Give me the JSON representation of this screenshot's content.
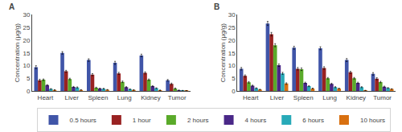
{
  "chart_data": [
    {
      "type": "bar",
      "title": "A",
      "categories": [
        "Heart",
        "Liver",
        "Spleen",
        "Lung",
        "Kidney",
        "Tumor"
      ],
      "ylabel": "Concentration (μg/g)",
      "ylim": [
        0,
        30
      ],
      "yticks": [
        0,
        5,
        10,
        15,
        20,
        25,
        30
      ],
      "grid": false,
      "legend": "bottom",
      "series": [
        {
          "name": "0.5 hours",
          "color": "#4055a8",
          "values": [
            9.4,
            15.0,
            12.2,
            11.1,
            14.0,
            4.3
          ],
          "errors": [
            0.6,
            0.5,
            0.5,
            0.6,
            0.5,
            0.3
          ]
        },
        {
          "name": "1 hour",
          "color": "#992222",
          "values": [
            4.3,
            7.8,
            6.5,
            7.0,
            7.2,
            2.9
          ],
          "errors": [
            0.4,
            0.4,
            0.4,
            0.4,
            0.4,
            0.3
          ]
        },
        {
          "name": "2 hours",
          "color": "#5aaa2a",
          "values": [
            4.5,
            4.8,
            1.4,
            3.7,
            4.5,
            1.1
          ],
          "errors": [
            0.3,
            0.3,
            0.2,
            0.3,
            0.3,
            0.2
          ]
        },
        {
          "name": "4 hours",
          "color": "#4a2888",
          "values": [
            2.4,
            1.7,
            1.1,
            1.6,
            2.0,
            0.4
          ],
          "errors": [
            0.2,
            0.2,
            0.15,
            0.2,
            0.2,
            0.1
          ]
        },
        {
          "name": "6 hours",
          "color": "#28aab8",
          "values": [
            0.9,
            1.5,
            1.0,
            0.8,
            1.2,
            0.25
          ],
          "errors": [
            0.15,
            0.2,
            0.15,
            0.1,
            0.15,
            0.1
          ]
        },
        {
          "name": "10 hours",
          "color": "#d87010",
          "values": [
            0.5,
            0.55,
            0.6,
            0.5,
            0.4,
            0.2
          ],
          "errors": [
            0.1,
            0.1,
            0.1,
            0.1,
            0.1,
            0.05
          ]
        }
      ]
    },
    {
      "type": "bar",
      "title": "B",
      "categories": [
        "Heart",
        "Liver",
        "Spleen",
        "Lung",
        "Kidney",
        "Tumor"
      ],
      "ylabel": "Concentration (μg/g)",
      "ylim": [
        0,
        30
      ],
      "yticks": [
        0,
        5,
        10,
        15,
        20,
        25,
        30
      ],
      "grid": false,
      "series": [
        {
          "name": "0.5 hours",
          "color": "#4055a8",
          "values": [
            8.8,
            26.5,
            17.0,
            16.8,
            12.2,
            6.8
          ],
          "errors": [
            0.5,
            0.8,
            0.6,
            0.6,
            0.6,
            0.5
          ]
        },
        {
          "name": "1 hour",
          "color": "#992222",
          "values": [
            6.0,
            22.3,
            8.8,
            9.1,
            7.4,
            4.9
          ],
          "errors": [
            0.4,
            0.7,
            0.5,
            0.5,
            0.4,
            0.4
          ]
        },
        {
          "name": "2 hours",
          "color": "#5aaa2a",
          "values": [
            3.5,
            18.0,
            8.6,
            5.1,
            5.1,
            3.6
          ],
          "errors": [
            0.3,
            0.6,
            0.5,
            0.3,
            0.3,
            0.3
          ]
        },
        {
          "name": "4 hours",
          "color": "#4a2888",
          "values": [
            2.2,
            10.2,
            3.3,
            2.9,
            3.3,
            1.8
          ],
          "errors": [
            0.2,
            0.5,
            0.25,
            0.25,
            0.25,
            0.2
          ]
        },
        {
          "name": "6 hours",
          "color": "#28aab8",
          "values": [
            1.2,
            7.0,
            2.0,
            1.6,
            1.6,
            1.3
          ],
          "errors": [
            0.15,
            0.4,
            0.2,
            0.2,
            0.2,
            0.15
          ]
        },
        {
          "name": "10 hours",
          "color": "#d87010",
          "values": [
            0.7,
            3.0,
            1.1,
            1.1,
            0.3,
            0.9
          ],
          "errors": [
            0.1,
            0.3,
            0.15,
            0.15,
            0.1,
            0.1
          ]
        }
      ]
    }
  ]
}
